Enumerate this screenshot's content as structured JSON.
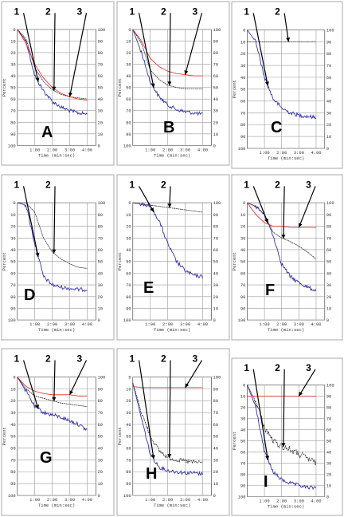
{
  "axes": {
    "x_title": "Time (min:sec)",
    "x_ticks": [
      "1:00",
      "2:00",
      "3:00",
      "4:00"
    ],
    "y_left_title": "Percent",
    "y_left_ticks": [
      "0",
      "10",
      "20",
      "30",
      "40",
      "50",
      "60",
      "70",
      "80",
      "90",
      "100"
    ],
    "y_right_ticks": [
      "100",
      "90",
      "80",
      "70",
      "60",
      "50",
      "40",
      "30",
      "20",
      "10",
      "0"
    ],
    "xlim": [
      0,
      4.5
    ],
    "ylim": [
      0,
      100
    ]
  },
  "colors": {
    "1": "#3333aa",
    "2": "#333333",
    "3": "#ee2222",
    "grid": "#9a9a9a",
    "arrow": "#000000"
  },
  "chart_data": [
    {
      "type": "line",
      "label": "A",
      "arrow_labels": [
        "1",
        "2",
        "3"
      ],
      "x": [
        0,
        0.5,
        1,
        1.5,
        2,
        2.5,
        3,
        3.5,
        4
      ],
      "series": [
        {
          "values": [
            0,
            10,
            40,
            53,
            62,
            67,
            70,
            72,
            73
          ]
        },
        {
          "values": [
            0,
            8,
            33,
            45,
            52,
            56,
            58,
            59,
            60
          ]
        },
        {
          "values": [
            0,
            12,
            30,
            42,
            50,
            55,
            58,
            60,
            61
          ]
        }
      ]
    },
    {
      "type": "line",
      "label": "B",
      "arrow_labels": [
        "1",
        "2",
        "3"
      ],
      "x": [
        0,
        0.5,
        1,
        1.5,
        2,
        2.5,
        3,
        3.5,
        4
      ],
      "series": [
        {
          "values": [
            0,
            20,
            45,
            58,
            65,
            69,
            71,
            72,
            73
          ]
        },
        {
          "values": [
            0,
            12,
            35,
            43,
            48,
            50,
            51,
            51,
            51
          ]
        },
        {
          "values": [
            0,
            10,
            25,
            32,
            36,
            38,
            39,
            40,
            40
          ]
        }
      ]
    },
    {
      "type": "line",
      "label": "C",
      "arrow_labels": [
        "1",
        "2"
      ],
      "x": [
        0,
        0.5,
        1,
        1.5,
        2,
        2.5,
        3,
        3.5,
        4
      ],
      "series": [
        {
          "values": [
            0,
            10,
            40,
            58,
            66,
            70,
            72,
            73,
            74
          ]
        },
        {
          "values": [
            10,
            10,
            10,
            10,
            10,
            10,
            10,
            10,
            10
          ]
        }
      ]
    },
    {
      "type": "line",
      "label": "D",
      "arrow_labels": [
        "1",
        "2"
      ],
      "x": [
        0,
        0.5,
        1,
        1.5,
        2,
        2.5,
        3,
        3.5,
        4
      ],
      "series": [
        {
          "values": [
            0,
            2,
            35,
            63,
            70,
            72,
            73,
            74,
            74
          ]
        },
        {
          "values": [
            0,
            0,
            8,
            30,
            42,
            48,
            52,
            55,
            56
          ]
        }
      ]
    },
    {
      "type": "line",
      "label": "E",
      "arrow_labels": [
        "1",
        "2"
      ],
      "x": [
        0,
        0.5,
        1,
        1.5,
        2,
        2.5,
        3,
        3.5,
        4
      ],
      "series": [
        {
          "values": [
            0,
            1,
            3,
            15,
            35,
            50,
            58,
            62,
            63
          ]
        },
        {
          "values": [
            0,
            1,
            2,
            3,
            4,
            5,
            6,
            7,
            8
          ]
        }
      ]
    },
    {
      "type": "line",
      "label": "F",
      "arrow_labels": [
        "1",
        "2",
        "3"
      ],
      "x": [
        0,
        0.5,
        1,
        1.5,
        2,
        2.5,
        3,
        3.5,
        4
      ],
      "series": [
        {
          "values": [
            0,
            3,
            10,
            28,
            52,
            63,
            68,
            72,
            75
          ]
        },
        {
          "values": [
            0,
            3,
            10,
            25,
            30,
            33,
            37,
            42,
            48
          ]
        },
        {
          "values": [
            0,
            10,
            17,
            20,
            20,
            21,
            21,
            21,
            21
          ]
        }
      ]
    },
    {
      "type": "line",
      "label": "G",
      "arrow_labels": [
        "1",
        "2",
        "3"
      ],
      "x": [
        0,
        0.5,
        1,
        1.5,
        2,
        2.5,
        3,
        3.5,
        4
      ],
      "series": [
        {
          "values": [
            0,
            12,
            25,
            30,
            32,
            34,
            37,
            40,
            45
          ]
        },
        {
          "values": [
            0,
            10,
            16,
            18,
            20,
            22,
            23,
            24,
            25
          ]
        },
        {
          "values": [
            0,
            8,
            12,
            14,
            15,
            15,
            15,
            16,
            16
          ]
        }
      ]
    },
    {
      "type": "line",
      "label": "H",
      "arrow_labels": [
        "1",
        "2",
        "3"
      ],
      "x": [
        0,
        0.5,
        1,
        1.5,
        2,
        2.5,
        3,
        3.5,
        4
      ],
      "series": [
        {
          "values": [
            5,
            35,
            65,
            76,
            79,
            80,
            81,
            81,
            82
          ]
        },
        {
          "values": [
            5,
            30,
            50,
            62,
            68,
            70,
            71,
            72,
            72
          ]
        },
        {
          "values": [
            8,
            9,
            9,
            9,
            9,
            9,
            9,
            9,
            9
          ]
        }
      ]
    },
    {
      "type": "line",
      "label": "I",
      "arrow_labels": [
        "1",
        "2",
        "3"
      ],
      "x": [
        0,
        0.5,
        1,
        1.5,
        2,
        2.5,
        3,
        3.5,
        4
      ],
      "series": [
        {
          "values": [
            0,
            20,
            60,
            78,
            85,
            88,
            90,
            92,
            92
          ]
        },
        {
          "values": [
            0,
            15,
            38,
            50,
            55,
            58,
            62,
            66,
            70
          ]
        },
        {
          "values": [
            10,
            10,
            10,
            10,
            10,
            10,
            10,
            10,
            10
          ]
        }
      ]
    }
  ]
}
